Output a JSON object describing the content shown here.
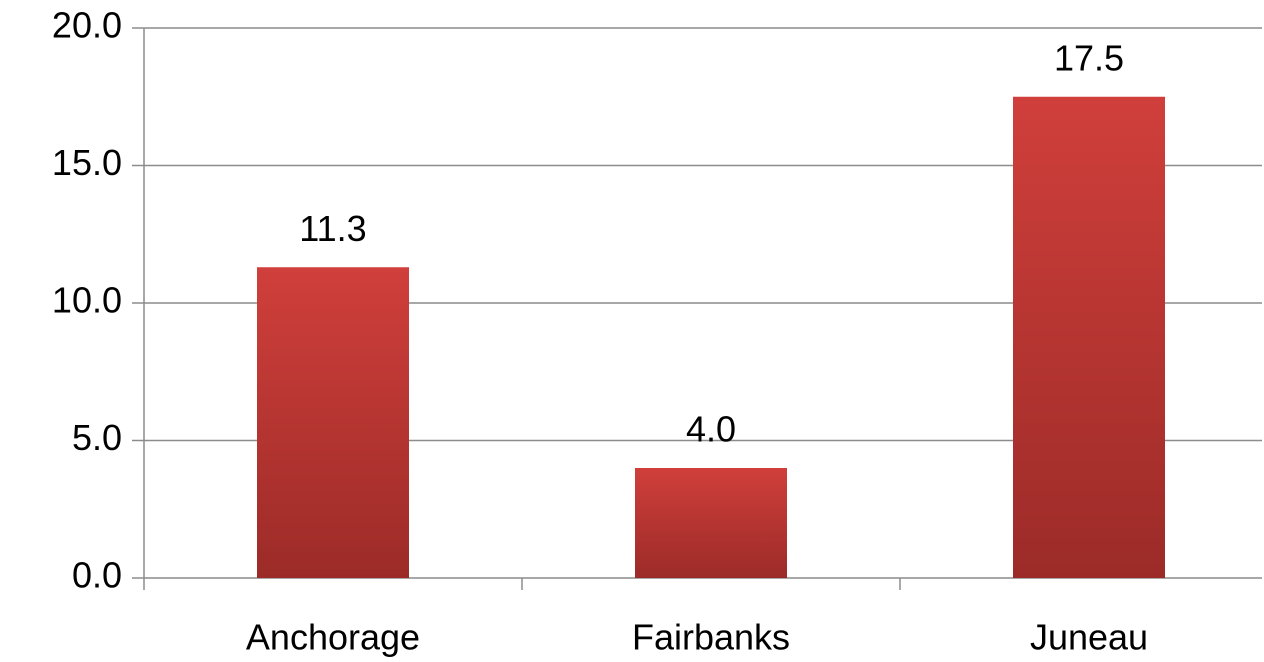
{
  "chart_data": {
    "type": "bar",
    "categories": [
      "Anchorage",
      "Fairbanks",
      "Juneau"
    ],
    "values": [
      11.3,
      4.0,
      17.5
    ],
    "value_labels": [
      "11.3",
      "4.0",
      "17.5"
    ],
    "color": "#d03f3b",
    "ylim": [
      0,
      20
    ],
    "yticks": [
      {
        "value": 0,
        "label": "0.0"
      },
      {
        "value": 5,
        "label": "5.0"
      },
      {
        "value": 10,
        "label": "10.0"
      },
      {
        "value": 15,
        "label": "15.0"
      },
      {
        "value": 20,
        "label": "20.0"
      }
    ],
    "grid": true
  }
}
